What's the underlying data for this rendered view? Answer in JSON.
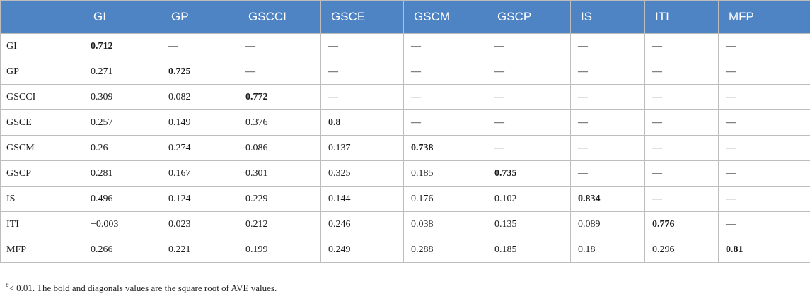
{
  "table": {
    "columns": [
      "",
      "GI",
      "GP",
      "GSCCI",
      "GSCE",
      "GSCM",
      "GSCP",
      "IS",
      "ITI",
      "MFP"
    ],
    "rows": [
      {
        "label": "GI",
        "cells": [
          "0.712",
          "—",
          "—",
          "—",
          "—",
          "—",
          "—",
          "—",
          "—"
        ]
      },
      {
        "label": "GP",
        "cells": [
          "0.271",
          "0.725",
          "—",
          "—",
          "—",
          "—",
          "—",
          "—",
          "—"
        ]
      },
      {
        "label": "GSCCI",
        "cells": [
          "0.309",
          "0.082",
          "0.772",
          "—",
          "—",
          "—",
          "—",
          "—",
          "—"
        ]
      },
      {
        "label": "GSCE",
        "cells": [
          "0.257",
          "0.149",
          "0.376",
          "0.8",
          "—",
          "—",
          "—",
          "—",
          "—"
        ]
      },
      {
        "label": "GSCM",
        "cells": [
          "0.26",
          "0.274",
          "0.086",
          "0.137",
          "0.738",
          "—",
          "—",
          "—",
          "—"
        ]
      },
      {
        "label": "GSCP",
        "cells": [
          "0.281",
          "0.167",
          "0.301",
          "0.325",
          "0.185",
          "0.735",
          "—",
          "—",
          "—"
        ]
      },
      {
        "label": "IS",
        "cells": [
          "0.496",
          "0.124",
          "0.229",
          "0.144",
          "0.176",
          "0.102",
          "0.834",
          "—",
          "—"
        ]
      },
      {
        "label": "ITI",
        "cells": [
          "−0.003",
          "0.023",
          "0.212",
          "0.246",
          "0.038",
          "0.135",
          "0.089",
          "0.776",
          "—"
        ]
      },
      {
        "label": "MFP",
        "cells": [
          "0.266",
          "0.221",
          "0.199",
          "0.249",
          "0.288",
          "0.185",
          "0.18",
          "0.296",
          "0.81"
        ]
      }
    ]
  },
  "footnote": {
    "superscript": "p",
    "text": "< 0.01. The bold and diagonals values are the square root of AVE values."
  },
  "colors": {
    "header_bg": "#4e84c4",
    "header_text": "#ffffff",
    "border": "#bdbdbd"
  }
}
